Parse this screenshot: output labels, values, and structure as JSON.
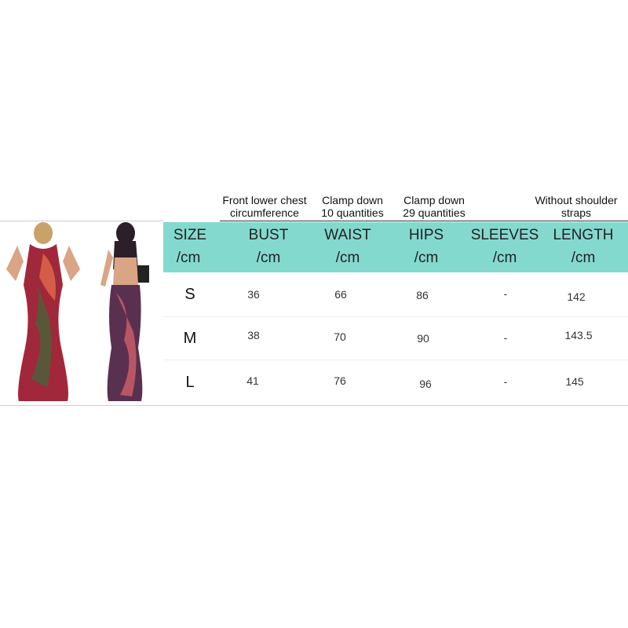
{
  "notes": {
    "bust": "Front lower chest circumference",
    "waist": "Clamp down 10 quantities",
    "hips": "Clamp down 29 quantities",
    "length": "Without shoulder straps"
  },
  "header": {
    "columns": [
      "SIZE",
      "BUST",
      "WAIST",
      "HIPS",
      "SLEEVES",
      "LENGTH"
    ],
    "unit": "/cm"
  },
  "rows": [
    [
      "S",
      "36",
      "66",
      "86",
      "-",
      "142"
    ],
    [
      "M",
      "38",
      "70",
      "90",
      "-",
      "143.5"
    ],
    [
      "L",
      "41",
      "76",
      "96",
      "-",
      "145"
    ]
  ],
  "colors": {
    "header_band": "#84d9cf"
  },
  "images": [
    "model-front-photo",
    "model-back-photo"
  ]
}
